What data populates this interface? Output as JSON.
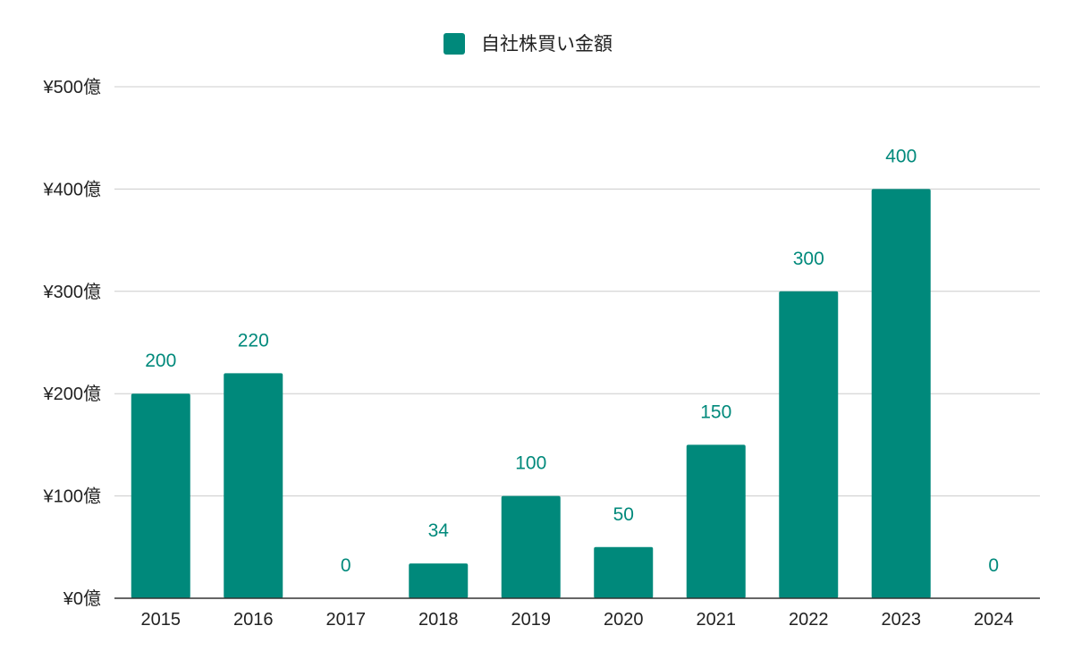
{
  "chart_data": {
    "type": "bar",
    "legend": {
      "position": "top",
      "entries": [
        {
          "name": "自社株買い金額",
          "color": "#00897b"
        }
      ]
    },
    "categories": [
      "2015",
      "2016",
      "2017",
      "2018",
      "2019",
      "2020",
      "2021",
      "2022",
      "2023",
      "2024"
    ],
    "series": [
      {
        "name": "自社株買い金額",
        "color": "#00897b",
        "values": [
          200,
          220,
          0,
          34,
          100,
          50,
          150,
          300,
          400,
          0
        ]
      }
    ],
    "data_labels": [
      "200",
      "220",
      "0",
      "34",
      "100",
      "50",
      "150",
      "300",
      "400",
      "0"
    ],
    "y_ticks": [
      {
        "value": 0,
        "label": "¥0億"
      },
      {
        "value": 100,
        "label": "¥100億"
      },
      {
        "value": 200,
        "label": "¥200億"
      },
      {
        "value": 300,
        "label": "¥300億"
      },
      {
        "value": 400,
        "label": "¥400億"
      },
      {
        "value": 500,
        "label": "¥500億"
      }
    ],
    "ylim": [
      0,
      500
    ],
    "grid": true,
    "title": "",
    "xlabel": "",
    "ylabel": ""
  }
}
